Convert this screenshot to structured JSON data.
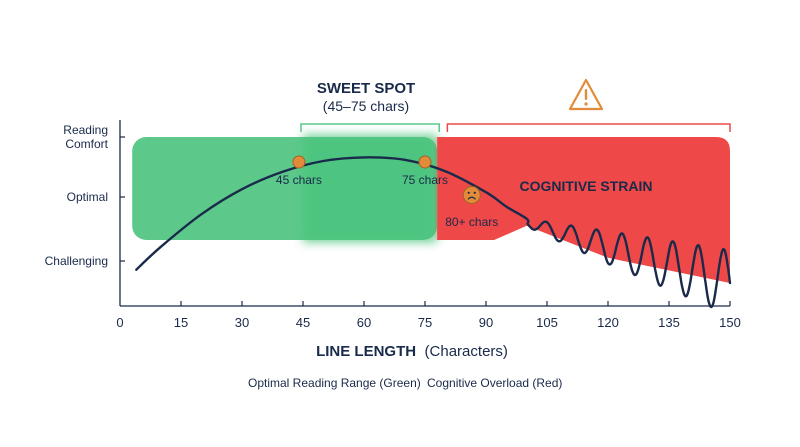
{
  "chart_data": {
    "type": "line",
    "xlabel_bold": "LINE LENGTH",
    "xlabel_normal": "(Characters)",
    "xlim": [
      0,
      150
    ],
    "x_ticks": [
      "0",
      "15",
      "30",
      "45",
      "60",
      "75",
      "90",
      "105",
      "120",
      "135",
      "150"
    ],
    "y_levels": [
      {
        "label_lines": [
          "Reading",
          "Comfort"
        ],
        "value": 3
      },
      {
        "label_lines": [
          "Optimal"
        ],
        "value": 2
      },
      {
        "label_lines": [
          "Challenging"
        ],
        "value": 1
      }
    ],
    "ylim": [
      0.5,
      3.3
    ],
    "regions": {
      "green": {
        "from": 3,
        "to": 78,
        "color": "#5cc98a"
      },
      "sweet_spot": {
        "from": 45,
        "to": 75,
        "color": "#4cc47e"
      },
      "red": {
        "from": 78,
        "to": 150,
        "color": "#ee4848"
      }
    },
    "sweet_spot_title": "SWEET SPOT",
    "sweet_spot_subtitle": "(45–75 chars)",
    "strain_label": "COGNITIVE STRAIN",
    "warning_icon": "warning-triangle-icon",
    "markers": [
      {
        "x": 44,
        "y": 2.6,
        "label": "45 chars",
        "color": "#e28b3a"
      },
      {
        "x": 75,
        "y": 2.6,
        "label": "75 chars",
        "color": "#e28b3a"
      }
    ],
    "sad_marker": {
      "x": 86,
      "y": 2.05,
      "label": "80+ chars",
      "icon": "sad-face-icon",
      "color": "#e28b3a"
    },
    "curve": {
      "smooth_part": [
        [
          4,
          0.85
        ],
        [
          10,
          1.22
        ],
        [
          20,
          1.73
        ],
        [
          30,
          2.13
        ],
        [
          40,
          2.42
        ],
        [
          50,
          2.6
        ],
        [
          60,
          2.66
        ],
        [
          70,
          2.62
        ],
        [
          80,
          2.43
        ],
        [
          90,
          2.08
        ],
        [
          95,
          1.85
        ],
        [
          100,
          1.66
        ]
      ],
      "wavy_part": {
        "x_start": 100,
        "x_end": 150,
        "baseline_start": 1.6,
        "baseline_end": 0.62,
        "amplitude_start": 0.06,
        "amplitude_end": 0.55,
        "cycles": 8
      }
    },
    "legend": [
      {
        "name": "Optimal Reading Range (Green)"
      },
      {
        "name": "Cognitive Overload (Red)"
      }
    ],
    "colors": {
      "line": "#1a2a4a",
      "axis": "#1a2a4a",
      "bracket_green": "#5cc98a",
      "bracket_red": "#ee4848",
      "warning": "#e28b3a"
    }
  }
}
